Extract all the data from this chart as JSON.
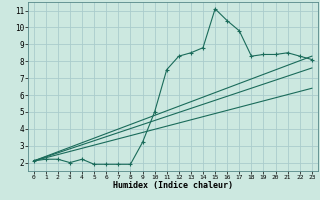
{
  "xlabel": "Humidex (Indice chaleur)",
  "bg_color": "#cce8e0",
  "grid_color": "#aacccc",
  "line_color": "#1a6b5a",
  "xlim": [
    -0.5,
    23.5
  ],
  "ylim": [
    1.5,
    11.5
  ],
  "xticks": [
    0,
    1,
    2,
    3,
    4,
    5,
    6,
    7,
    8,
    9,
    10,
    11,
    12,
    13,
    14,
    15,
    16,
    17,
    18,
    19,
    20,
    21,
    22,
    23
  ],
  "yticks": [
    2,
    3,
    4,
    5,
    6,
    7,
    8,
    9,
    10,
    11
  ],
  "main_x": [
    0,
    1,
    2,
    3,
    4,
    5,
    6,
    7,
    8,
    9,
    10,
    11,
    12,
    13,
    14,
    15,
    16,
    17,
    18,
    19,
    20,
    21,
    22,
    23
  ],
  "main_y": [
    2.1,
    2.2,
    2.2,
    2.0,
    2.2,
    1.9,
    1.9,
    1.9,
    1.9,
    3.2,
    5.0,
    7.5,
    8.3,
    8.5,
    8.8,
    11.1,
    10.4,
    9.8,
    8.3,
    8.4,
    8.4,
    8.5,
    8.3,
    8.1
  ],
  "line1_x": [
    0,
    23
  ],
  "line1_y": [
    2.1,
    8.3
  ],
  "line2_x": [
    0,
    23
  ],
  "line2_y": [
    2.1,
    7.6
  ],
  "line3_x": [
    0,
    23
  ],
  "line3_y": [
    2.1,
    6.4
  ]
}
